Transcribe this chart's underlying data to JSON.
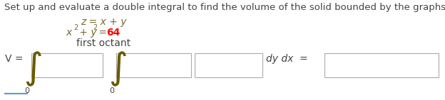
{
  "title_text": "Set up and evaluate a double integral to find the volume of the solid bounded by the graphs of the equations.",
  "eq_line1": "z = x + y",
  "eq_line2_left": "x",
  "eq_line2_sup1": "2",
  "eq_line2_mid": " + y",
  "eq_line2_sup2": "2",
  "eq_line2_eq": " = ",
  "eq_line2_num": "64",
  "eq_line3": "first octant",
  "v_eq": "V =",
  "dy_dx_eq": "dy dx  =",
  "sub_zero": "0",
  "background_color": "#ffffff",
  "text_color": "#444444",
  "eq_color": "#7A6830",
  "red_color": "#FF0000",
  "box_edge_color": "#AAAAAA",
  "integral_color": "#6B5A00",
  "blue_line_color": "#5B9BD5",
  "title_fs": 9.5,
  "eq_fs": 10,
  "integral_fs": 26,
  "sub_fs": 8,
  "label_fs": 10
}
